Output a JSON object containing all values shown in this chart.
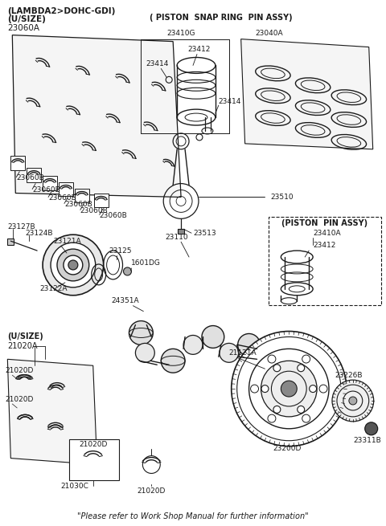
{
  "title_line1": "(LAMBDA2>DOHC-GDI)",
  "title_line2": "(U/SIZE)",
  "title_line3": "23060A",
  "footer": "\"Please refer to Work Shop Manual for further information\"",
  "bg_color": "#ffffff",
  "line_color": "#1a1a1a",
  "piston_snap_ring_label": "( PISTON  SNAP RING  PIN ASSY)",
  "piston_pin_box_label": "(PISTON  PIN ASSY)",
  "part_23410G": "23410G",
  "part_23040A": "23040A",
  "part_23414": "23414",
  "part_23412": "23412",
  "part_23060B": "23060B",
  "part_23510": "23510",
  "part_23513": "23513",
  "part_23410A": "23410A",
  "part_23127B": "23127B",
  "part_23124B": "23124B",
  "part_23121A": "23121A",
  "part_23125": "23125",
  "part_1601DG": "1601DG",
  "part_23122A": "23122A",
  "part_24351A": "24351A",
  "part_23110": "23110",
  "part_21121A": "21121A",
  "part_21020A": "21020A",
  "part_21020D": "21020D",
  "part_21030C": "21030C",
  "part_23226B": "23226B",
  "part_23311B": "23311B",
  "part_23200D": "23200D",
  "usize2_label": "(U/SIZE)"
}
